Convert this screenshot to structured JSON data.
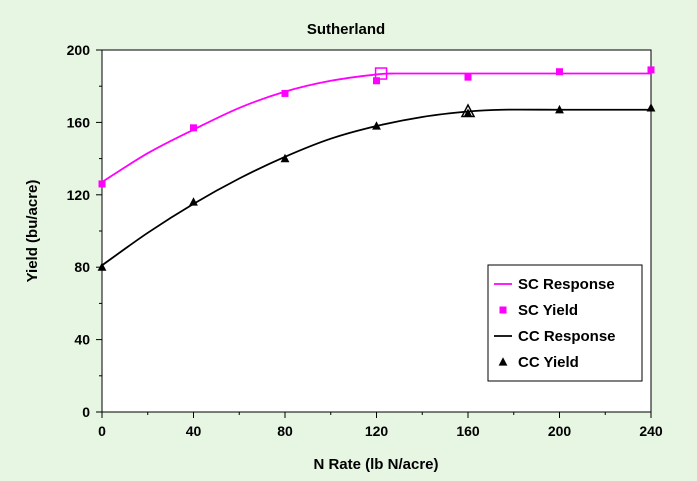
{
  "chart_data": {
    "type": "scatter",
    "title": "Sutherland",
    "xlabel": "N Rate (lb N/acre)",
    "ylabel": "Yield (bu/acre)",
    "xlim": [
      0,
      240
    ],
    "ylim": [
      0,
      200
    ],
    "x_ticks": [
      0,
      40,
      80,
      120,
      160,
      200,
      240
    ],
    "y_ticks": [
      0,
      40,
      80,
      120,
      160,
      200
    ],
    "grid": false,
    "legend_position": "bottom-right",
    "series": [
      {
        "name": "SC Response",
        "kind": "line",
        "color": "#ff00ff",
        "x": [
          0,
          20,
          40,
          60,
          80,
          100,
          120,
          128,
          140,
          160,
          180,
          200,
          220,
          240
        ],
        "y": [
          127,
          143,
          156,
          168,
          177,
          183,
          186.5,
          187,
          187,
          187,
          187,
          187,
          187,
          187
        ]
      },
      {
        "name": "SC Yield",
        "kind": "marker",
        "marker": "square",
        "color": "#ff00ff",
        "x": [
          0,
          40,
          80,
          120,
          160,
          200,
          240
        ],
        "y": [
          126,
          157,
          176,
          183,
          185,
          188,
          189
        ]
      },
      {
        "name": "CC Response",
        "kind": "line",
        "color": "#000000",
        "x": [
          0,
          20,
          40,
          60,
          80,
          100,
          120,
          140,
          160,
          175,
          200,
          220,
          240
        ],
        "y": [
          81,
          99,
          115,
          129,
          141,
          151,
          158,
          163,
          166,
          167,
          167,
          167,
          167
        ]
      },
      {
        "name": "CC Yield",
        "kind": "marker",
        "marker": "triangle",
        "color": "#000000",
        "x": [
          0,
          40,
          80,
          120,
          160,
          200,
          240
        ],
        "y": [
          80,
          116,
          140,
          158,
          165,
          167,
          168
        ]
      }
    ],
    "annotations": [
      {
        "kind": "open-square",
        "x": 122,
        "y": 187,
        "color": "#ff00ff"
      },
      {
        "kind": "open-triangle",
        "x": 160,
        "y": 166,
        "color": "#000000"
      }
    ]
  }
}
